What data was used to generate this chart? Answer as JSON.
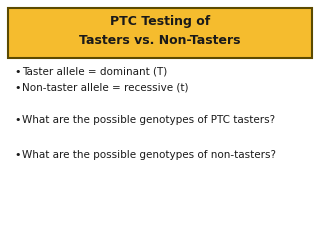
{
  "title_line1": "PTC Testing of",
  "title_line2": "Tasters vs. Non-Tasters",
  "title_bg_color": "#F5BC2E",
  "title_border_color": "#5C4A00",
  "background_color": "#FFFFFF",
  "text_color": "#1A1A1A",
  "bullet_items": [
    {
      "text": "Taster allele = dominant (T)",
      "spacer_before": 0
    },
    {
      "text": "Non-taster allele = recessive (t)",
      "spacer_before": 0
    },
    {
      "text": "What are the possible genotypes of PTC tasters?",
      "spacer_before": 1
    },
    {
      "text": "What are the possible genotypes of non-tasters?",
      "spacer_before": 1
    }
  ],
  "figsize": [
    3.2,
    2.4
  ],
  "dpi": 100
}
